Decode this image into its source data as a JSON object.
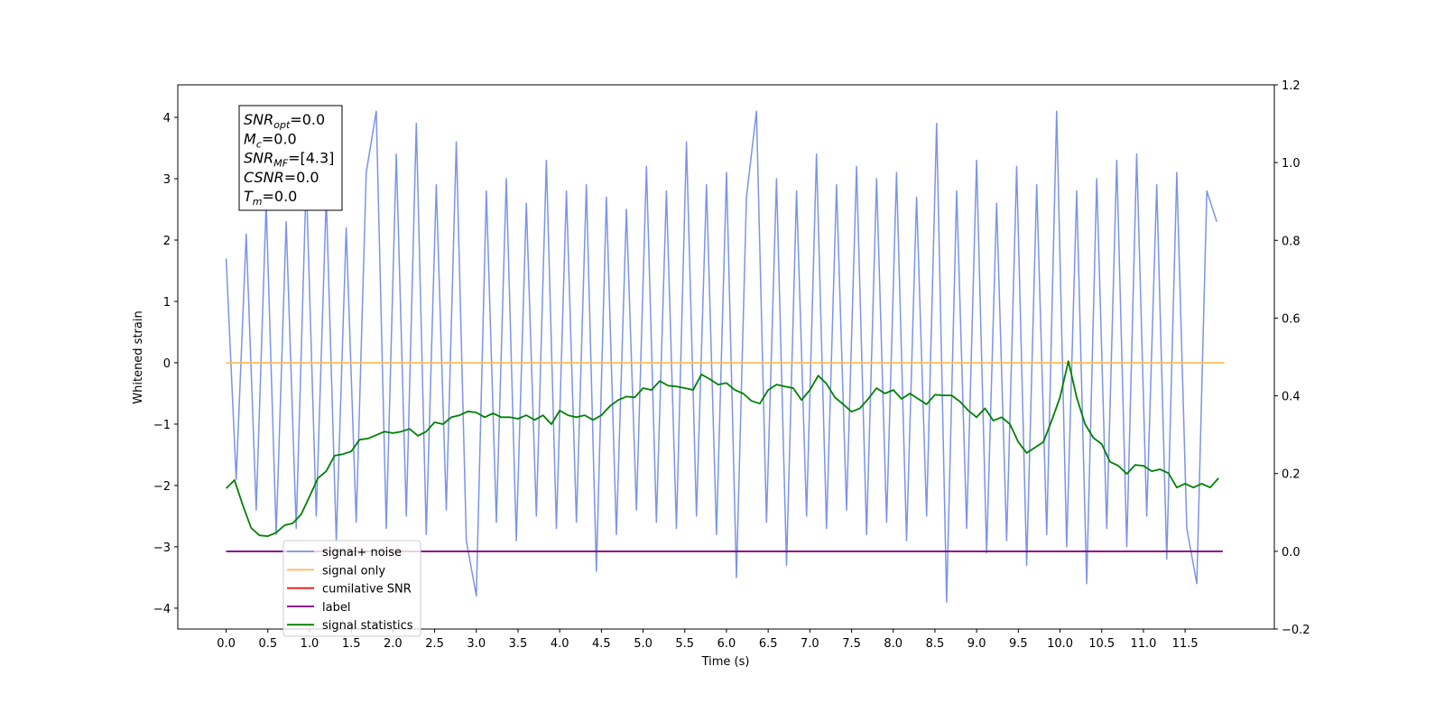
{
  "chart_data": {
    "type": "line",
    "xlabel": "Time (s)",
    "ylabel": "Whitened strain",
    "xlim": [
      -0.58,
      12.57
    ],
    "ylim": [
      -4.34,
      4.53
    ],
    "y2lim": [
      -0.2,
      1.2
    ],
    "xticks": [
      {
        "value": 0,
        "label": "0.0"
      },
      0.5,
      {
        "value": 1,
        "label": "1.0"
      },
      1.5,
      {
        "value": 2,
        "label": "2.0"
      },
      2.5,
      {
        "value": 3,
        "label": "3.0"
      },
      3.5,
      {
        "value": 4,
        "label": "4.0"
      },
      4.5,
      {
        "value": 5,
        "label": "5.0"
      },
      5.5,
      {
        "value": 6,
        "label": "6.0"
      },
      6.5,
      {
        "value": 7,
        "label": "7.0"
      },
      7.5,
      {
        "value": 8,
        "label": "8.0"
      },
      8.5,
      {
        "value": 9,
        "label": "9.0"
      },
      9.5,
      {
        "value": 10,
        "label": "10.0"
      },
      10.5,
      {
        "value": 11,
        "label": "11.0"
      },
      11.5
    ],
    "yticks": [
      {
        "value": -4,
        "label": "−4"
      },
      {
        "value": -3,
        "label": "−3"
      },
      {
        "value": -2,
        "label": "−2"
      },
      {
        "value": -1,
        "label": "−1"
      },
      0,
      1,
      2,
      3,
      4
    ],
    "y2ticks": [
      {
        "value": -0.2,
        "label": "−0.2"
      },
      {
        "value": 0,
        "label": "0.0"
      },
      0.2,
      0.4,
      0.6,
      0.8,
      {
        "value": 1,
        "label": "1.0"
      },
      1.2
    ],
    "annotation": [
      {
        "text": "SNR",
        "sub": "opt",
        "rest": "=0.0"
      },
      {
        "text": "M",
        "sub": "c",
        "rest": "=0.0"
      },
      {
        "text": "SNR",
        "sub": "MF",
        "rest": "=[4.3]"
      },
      {
        "text": "CSNR",
        "rest": "=0.0"
      },
      {
        "text": "T",
        "sub": "m",
        "rest": "=0.0"
      }
    ],
    "series": [
      {
        "name": "signal+ noise",
        "color": "#7b94e8",
        "axis": "y",
        "x": [
          0,
          0.12,
          0.24,
          0.36,
          0.48,
          0.6,
          0.72,
          0.84,
          0.96,
          1.08,
          1.2,
          1.32,
          1.44,
          1.56,
          1.68,
          1.8,
          1.92,
          2.04,
          2.16,
          2.28,
          2.4,
          2.52,
          2.64,
          2.76,
          2.88,
          3,
          3.12,
          3.24,
          3.36,
          3.48,
          3.6,
          3.72,
          3.84,
          3.96,
          4.08,
          4.2,
          4.32,
          4.44,
          4.56,
          4.68,
          4.8,
          4.92,
          5.04,
          5.16,
          5.28,
          5.4,
          5.52,
          5.64,
          5.76,
          5.88,
          6,
          6.12,
          6.24,
          6.36,
          6.48,
          6.6,
          6.72,
          6.84,
          6.96,
          7.08,
          7.2,
          7.32,
          7.44,
          7.56,
          7.68,
          7.8,
          7.92,
          8.04,
          8.16,
          8.28,
          8.4,
          8.52,
          8.64,
          8.76,
          8.88,
          9,
          9.12,
          9.24,
          9.36,
          9.48,
          9.6,
          9.72,
          9.84,
          9.96,
          10.08,
          10.2,
          10.32,
          10.44,
          10.56,
          10.68,
          10.8,
          10.92,
          11.04,
          11.16,
          11.28,
          11.4,
          11.52,
          11.64,
          11.76,
          11.88
        ],
        "values": [
          1.7,
          -1.9,
          2.1,
          -2.4,
          2.6,
          -2.8,
          2.3,
          -2.7,
          3.0,
          -2.5,
          2.7,
          -2.9,
          2.2,
          -2.6,
          3.1,
          4.1,
          -2.7,
          3.4,
          -2.5,
          3.9,
          -2.8,
          2.9,
          -2.4,
          3.6,
          -2.9,
          -3.8,
          2.8,
          -2.6,
          3.0,
          -2.9,
          2.6,
          -2.5,
          3.3,
          -2.7,
          2.8,
          -2.6,
          2.9,
          -3.4,
          2.7,
          -2.8,
          2.5,
          -2.4,
          3.2,
          -2.6,
          2.8,
          -2.7,
          3.6,
          -2.5,
          2.9,
          -2.8,
          3.1,
          -3.5,
          2.7,
          4.1,
          -2.6,
          3.0,
          -3.3,
          2.8,
          -2.5,
          3.4,
          -2.7,
          2.9,
          -2.4,
          3.2,
          -2.8,
          3.0,
          -2.6,
          3.1,
          -2.9,
          2.7,
          -2.5,
          3.9,
          -3.9,
          2.8,
          -2.7,
          3.3,
          -3.1,
          2.6,
          -2.9,
          3.2,
          -3.3,
          2.9,
          -2.8,
          4.1,
          -3.0,
          2.8,
          -3.6,
          3.0,
          -2.7,
          3.3,
          -3.0,
          3.4,
          -2.5,
          2.9,
          -3.2,
          3.1,
          -2.7,
          -3.6,
          2.8,
          2.3
        ]
      },
      {
        "name": "signal only",
        "color": "#ffbe5c",
        "axis": "y",
        "x": [
          0,
          11.97
        ],
        "values": [
          0,
          0
        ]
      },
      {
        "name": "cumilative SNR",
        "color": "#ff0000",
        "axis": "y2",
        "x": [
          0,
          11.95
        ],
        "values": [
          0,
          0
        ]
      },
      {
        "name": "label",
        "color": "#800080",
        "axis": "y2",
        "x": [
          0,
          11.95
        ],
        "values": [
          0,
          0
        ]
      },
      {
        "name": "signal statistics",
        "color": "#008000",
        "axis": "y2",
        "x": [
          0,
          0.1,
          0.2,
          0.3,
          0.4,
          0.5,
          0.6,
          0.7,
          0.8,
          0.9,
          1,
          1.1,
          1.2,
          1.3,
          1.4,
          1.5,
          1.6,
          1.7,
          1.8,
          1.9,
          2,
          2.1,
          2.2,
          2.3,
          2.4,
          2.5,
          2.6,
          2.7,
          2.8,
          2.9,
          3,
          3.1,
          3.2,
          3.3,
          3.4,
          3.5,
          3.6,
          3.7,
          3.8,
          3.9,
          4,
          4.1,
          4.2,
          4.3,
          4.4,
          4.5,
          4.6,
          4.7,
          4.8,
          4.9,
          5,
          5.1,
          5.2,
          5.3,
          5.4,
          5.5,
          5.6,
          5.7,
          5.8,
          5.9,
          6,
          6.1,
          6.2,
          6.3,
          6.4,
          6.5,
          6.6,
          6.7,
          6.8,
          6.9,
          7,
          7.1,
          7.2,
          7.3,
          7.4,
          7.5,
          7.6,
          7.7,
          7.8,
          7.9,
          8,
          8.1,
          8.2,
          8.3,
          8.4,
          8.5,
          8.6,
          8.7,
          8.8,
          8.9,
          9,
          9.1,
          9.2,
          9.3,
          9.4,
          9.5,
          9.6,
          9.7,
          9.8,
          9.9,
          10,
          10.1,
          10.2,
          10.3,
          10.4,
          10.5,
          10.6,
          10.7,
          10.8,
          10.9,
          11,
          11.1,
          11.2,
          11.3,
          11.4,
          11.5,
          11.6,
          11.7,
          11.8,
          11.9
        ],
        "values": [
          0.162,
          0.183,
          0.118,
          0.06,
          0.041,
          0.039,
          0.048,
          0.067,
          0.072,
          0.095,
          0.141,
          0.188,
          0.206,
          0.246,
          0.25,
          0.257,
          0.287,
          0.29,
          0.299,
          0.308,
          0.304,
          0.308,
          0.315,
          0.297,
          0.308,
          0.332,
          0.327,
          0.345,
          0.35,
          0.36,
          0.357,
          0.345,
          0.355,
          0.345,
          0.345,
          0.341,
          0.35,
          0.338,
          0.35,
          0.327,
          0.362,
          0.35,
          0.345,
          0.35,
          0.338,
          0.35,
          0.373,
          0.389,
          0.398,
          0.396,
          0.42,
          0.415,
          0.438,
          0.426,
          0.424,
          0.42,
          0.415,
          0.455,
          0.443,
          0.429,
          0.433,
          0.415,
          0.406,
          0.387,
          0.38,
          0.415,
          0.429,
          0.424,
          0.42,
          0.389,
          0.415,
          0.452,
          0.431,
          0.396,
          0.378,
          0.359,
          0.368,
          0.392,
          0.42,
          0.406,
          0.415,
          0.392,
          0.406,
          0.392,
          0.378,
          0.403,
          0.401,
          0.401,
          0.385,
          0.362,
          0.345,
          0.368,
          0.336,
          0.345,
          0.327,
          0.281,
          0.253,
          0.267,
          0.281,
          0.336,
          0.396,
          0.489,
          0.396,
          0.327,
          0.292,
          0.276,
          0.23,
          0.22,
          0.199,
          0.222,
          0.22,
          0.206,
          0.211,
          0.201,
          0.164,
          0.174,
          0.164,
          0.174,
          0.164,
          0.188
        ]
      }
    ]
  }
}
